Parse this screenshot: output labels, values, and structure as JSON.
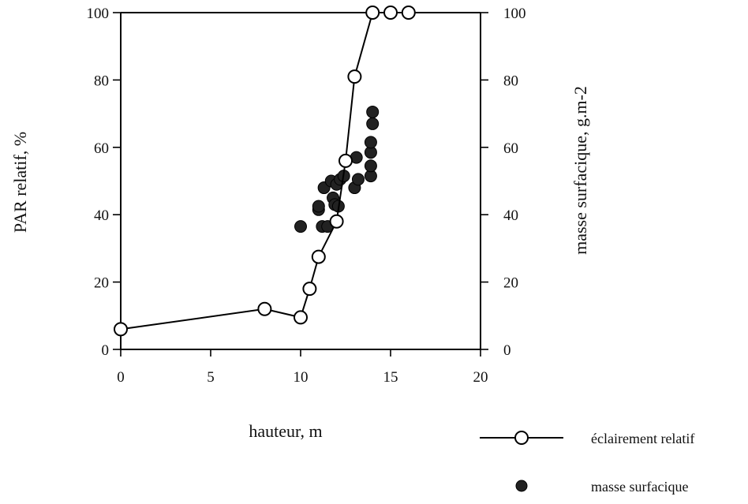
{
  "chart_data": {
    "type": "scatter",
    "xlabel": "hauteur, m",
    "ylabel_left": "PAR relatif, %",
    "ylabel_right": "masse surfacique, g.m-2",
    "xlim": [
      0,
      20
    ],
    "ylim_left": [
      0,
      100
    ],
    "ylim_right": [
      0,
      100
    ],
    "x_ticks": [
      "0",
      "5",
      "10",
      "15",
      "20"
    ],
    "y_ticks_left": [
      "0",
      "20",
      "40",
      "60",
      "80",
      "100"
    ],
    "y_ticks_right": [
      "0",
      "20",
      "40",
      "60",
      "80",
      "100"
    ],
    "grid": false,
    "legend_position": "bottom-right",
    "series": [
      {
        "name": "éclairement relatif",
        "kind": "line-open-circle",
        "axis": "left",
        "color": "#000000",
        "points": [
          [
            0,
            6
          ],
          [
            8,
            12
          ],
          [
            10,
            9.5
          ],
          [
            10.5,
            18
          ],
          [
            11,
            27.5
          ],
          [
            12,
            38
          ],
          [
            12.5,
            56
          ],
          [
            13,
            81
          ],
          [
            14,
            100
          ],
          [
            15,
            100
          ],
          [
            16,
            100
          ]
        ]
      },
      {
        "name": "masse surfacique",
        "kind": "filled-circle",
        "axis": "right",
        "color": "#222222",
        "points": [
          [
            10,
            36.5
          ],
          [
            11,
            41.5
          ],
          [
            11,
            42.5
          ],
          [
            11.2,
            36.5
          ],
          [
            11.3,
            48
          ],
          [
            11.5,
            36.5
          ],
          [
            11.7,
            50
          ],
          [
            11.8,
            45
          ],
          [
            11.9,
            43
          ],
          [
            12.1,
            42.5
          ],
          [
            12,
            49
          ],
          [
            12.2,
            50.5
          ],
          [
            12.4,
            51.5
          ],
          [
            13,
            48
          ],
          [
            13.1,
            57
          ],
          [
            13.2,
            50.5
          ],
          [
            13.9,
            51.5
          ],
          [
            13.9,
            54.5
          ],
          [
            13.9,
            58.5
          ],
          [
            13.9,
            61.5
          ],
          [
            14,
            67
          ],
          [
            14,
            70.5
          ]
        ]
      }
    ]
  }
}
